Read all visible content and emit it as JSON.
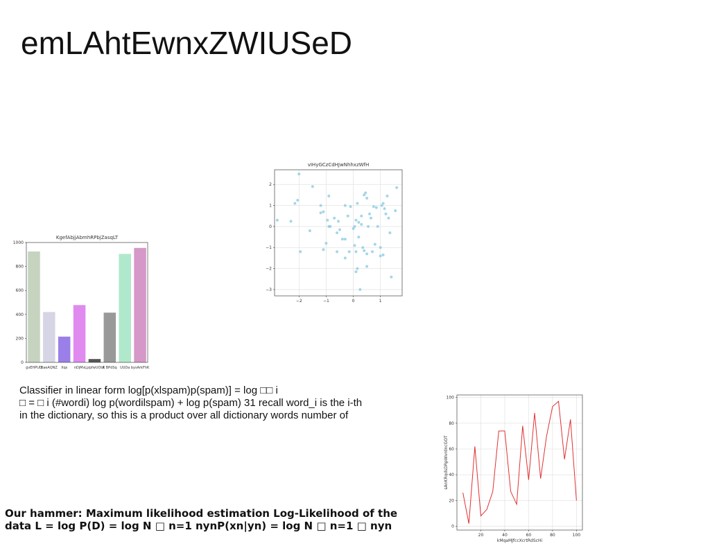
{
  "title": "emLAhtEwnxZWIUSeD",
  "body_lines": [
    "Classifier in linear form log[p(xlspam)p(spam)] = log □□ i",
    "□ = □ i (#wordi) log p(wordilspam) + log p(spam) 31 recall word_i is the i-th",
    "in the dictionary, so this is a product over all dictionary words number of"
  ],
  "footer_lines": [
    "Our hammer: Maximum likelihood estimation Log-Likelihood of the",
    "data L = log P(D) = log N □ n=1 nynP(xn|yn) = log N □ n=1 □ nyn"
  ],
  "chart_data": [
    {
      "type": "bar",
      "title": "KgefAbjjAbmhRPbjZasqLT",
      "categories": [
        "gvEHPUD",
        "BaeAQNZ",
        "Xqs",
        "nDjMv",
        "LjzpfwUOtA",
        "E BPdSq",
        "UUDa",
        "bysArkFhK"
      ],
      "values": [
        925,
        420,
        215,
        478,
        28,
        415,
        905,
        955
      ],
      "colors": [
        "#c5d3bf",
        "#d5d5e5",
        "#9b7fe8",
        "#e08af0",
        "#555555",
        "#999999",
        "#b0e8cc",
        "#d598c8"
      ],
      "ylim": [
        0,
        1000
      ],
      "yticks": [
        0,
        200,
        400,
        600,
        800,
        1000
      ],
      "grid": false
    },
    {
      "type": "scatter",
      "title": "vIHyGCzCdHJwNhhxzWfH",
      "color": "#87c8e0",
      "x": [
        -2,
        -1.5,
        -2.05,
        -2.15,
        -2.8,
        -2.3,
        -1.6,
        -1.95,
        -1.2,
        -1.1,
        -1.2,
        -0.9,
        -0.95,
        -0.85,
        -0.9,
        -0.7,
        -0.55,
        -0.5,
        -1.0,
        -1.1,
        -0.6,
        -0.4,
        -0.3,
        -0.3,
        -0.3,
        -0.2,
        -0.1,
        0.0,
        0.05,
        0.1,
        0.1,
        0.15,
        0.2,
        0.2,
        0.3,
        0.3,
        0.35,
        0.4,
        0.45,
        0.5,
        0.5,
        0.5,
        0.55,
        0.6,
        0.65,
        0.7,
        0.75,
        0.8,
        0.85,
        0.9,
        1.0,
        1.0,
        1.05,
        1.1,
        1.15,
        1.2,
        1.25,
        1.3,
        1.35,
        1.4,
        1.55,
        1.6,
        0.15,
        0.1,
        0.25,
        0.05,
        -0.6,
        1.1,
        0.4,
        -0.15
      ],
      "values": [
        2.5,
        1.9,
        1.25,
        1.1,
        0.3,
        0.25,
        -0.2,
        -1.2,
        1.0,
        0.7,
        0.65,
        1.45,
        0.3,
        0.0,
        0.0,
        0.4,
        0.25,
        -0.15,
        -0.8,
        -1.1,
        -1.2,
        -0.6,
        -0.6,
        -1.5,
        1.0,
        0.5,
        0.95,
        -0.1,
        -0.9,
        0.3,
        -1.2,
        1.1,
        0.2,
        -0.5,
        0.1,
        0.5,
        -1.0,
        1.5,
        1.6,
        1.35,
        -1.3,
        -1.9,
        0.0,
        0.6,
        0.4,
        -1.2,
        0.95,
        -0.85,
        0.9,
        0.0,
        -1.0,
        -1.4,
        1.0,
        1.1,
        0.85,
        0.6,
        1.45,
        0.4,
        -0.3,
        -2.4,
        0.75,
        1.85,
        -2.0,
        -2.15,
        -3.0,
        0.0,
        -0.3,
        -1.35,
        -1.15,
        -1.2
      ],
      "xlim": [
        -2.9,
        1.8
      ],
      "xticks": [
        {
          "value": -2,
          "label": "−2"
        },
        {
          "value": -1,
          "label": "−1"
        },
        0,
        1
      ],
      "ylim": [
        -3.3,
        2.7
      ],
      "yticks": [
        {
          "value": -3,
          "label": "−3"
        },
        {
          "value": -2,
          "label": "−2"
        },
        {
          "value": -1,
          "label": "−1"
        },
        0,
        1,
        2
      ],
      "grid": true
    },
    {
      "type": "line",
      "xlabel": "kMqaMJfccXcrtRdScHi",
      "ylabel": "sAnKRqdsDRpWvrdncGOT",
      "color": "#e03030",
      "x": [
        5,
        10,
        15,
        20,
        25,
        30,
        35,
        40,
        45,
        50,
        55,
        60,
        65,
        70,
        75,
        80,
        85,
        90,
        95,
        100
      ],
      "values": [
        26,
        2,
        62,
        8,
        13,
        27,
        74,
        74,
        27,
        17,
        78,
        36,
        88,
        37,
        70,
        93,
        97,
        52,
        83,
        20
      ],
      "xlim": [
        0,
        105
      ],
      "xticks": [
        20,
        40,
        60,
        80,
        100
      ],
      "ylim": [
        -3,
        102
      ],
      "yticks": [
        0,
        20,
        40,
        60,
        80,
        100
      ],
      "grid": true
    }
  ]
}
